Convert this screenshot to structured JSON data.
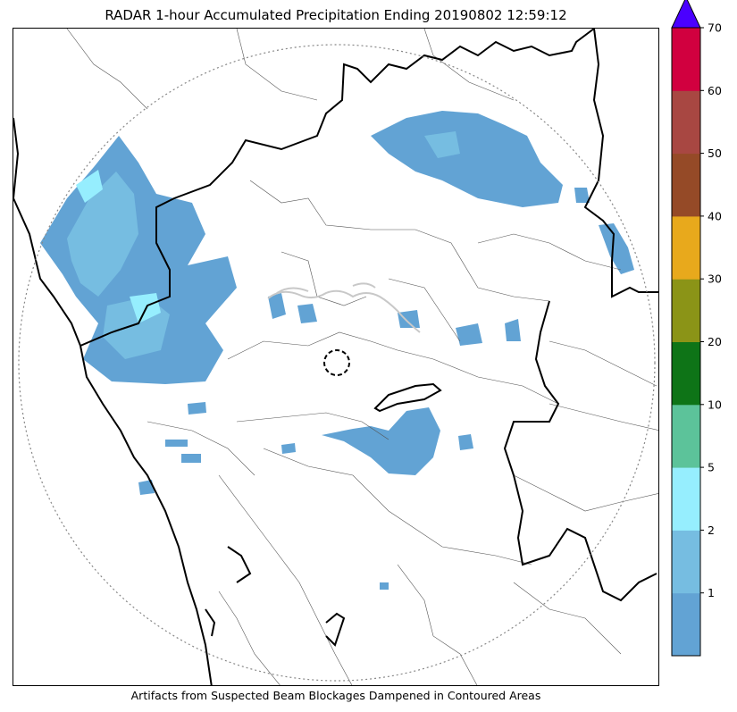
{
  "title": "RADAR 1-hour Accumulated Precipitation Ending 20190802 12:59:12",
  "footer": "Artifacts from Suspected Beam Blockages Dampened in Contoured Areas",
  "colorbar": {
    "levels": [
      {
        "label": "1",
        "color": "#62a3d4"
      },
      {
        "label": "2",
        "color": "#76bde1"
      },
      {
        "label": "5",
        "color": "#96eefe"
      },
      {
        "label": "10",
        "color": "#5cc39a"
      },
      {
        "label": "20",
        "color": "#0e7417"
      },
      {
        "label": "30",
        "color": "#8b9417"
      },
      {
        "label": "40",
        "color": "#e8a91c"
      },
      {
        "label": "50",
        "color": "#954a27"
      },
      {
        "label": "60",
        "color": "#a84742"
      },
      {
        "label": "70",
        "color": "#d1003f"
      }
    ],
    "overflow_color": "#4a00ff"
  },
  "colors": {
    "border_thick": "#000000",
    "border_thin": "#555555",
    "range_ring": "#888888",
    "blockage_contour": "#c8c8c8"
  }
}
